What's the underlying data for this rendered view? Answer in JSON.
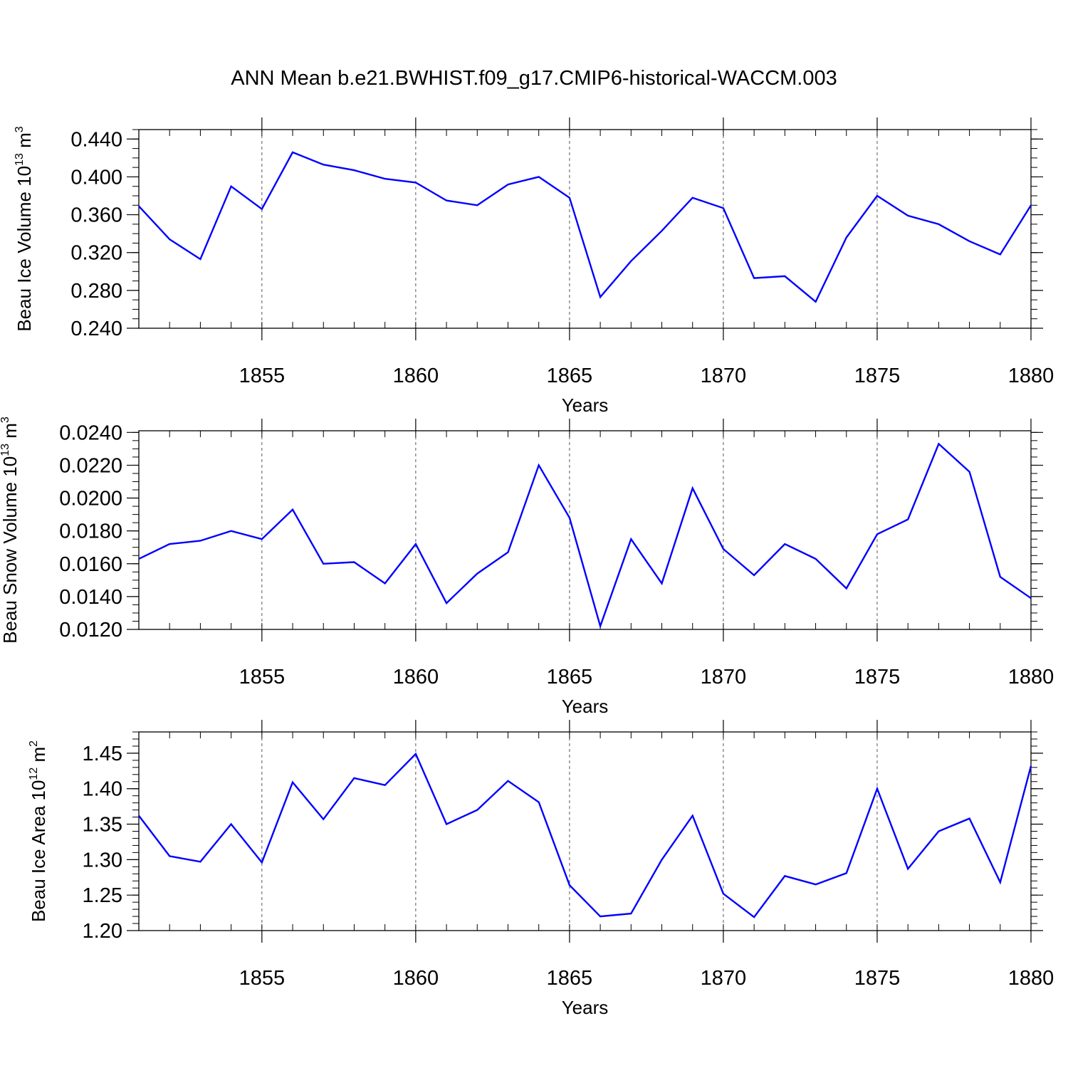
{
  "title": "ANN Mean b.e21.BWHIST.f09_g17.CMIP6-historical-WACCM.003",
  "line_color": "#0000ff",
  "chart_data": [
    {
      "type": "line",
      "xlabel": "Years",
      "ylabel": "Beau Ice Volume 10",
      "ylabel_exp": "13",
      "ylabel_unit": " m",
      "ylabel_unit_exp": "3",
      "xlim": [
        1851,
        1880
      ],
      "ylim": [
        0.24,
        0.45
      ],
      "xticks": [
        1855,
        1860,
        1865,
        1870,
        1875,
        1880
      ],
      "yticks": [
        0.24,
        0.28,
        0.32,
        0.36,
        0.4,
        0.44
      ],
      "ytick_labels": [
        "0.240",
        "0.280",
        "0.320",
        "0.360",
        "0.400",
        "0.440"
      ],
      "yminor_step": 0.01,
      "grid": "dashed vertical at major x ticks",
      "x": [
        1851,
        1852,
        1853,
        1854,
        1855,
        1856,
        1857,
        1858,
        1859,
        1860,
        1861,
        1862,
        1863,
        1864,
        1865,
        1866,
        1867,
        1868,
        1869,
        1870,
        1871,
        1872,
        1873,
        1874,
        1875,
        1876,
        1877,
        1878,
        1879,
        1880
      ],
      "values": [
        0.369,
        0.334,
        0.313,
        0.39,
        0.366,
        0.426,
        0.413,
        0.407,
        0.398,
        0.394,
        0.375,
        0.37,
        0.392,
        0.4,
        0.378,
        0.273,
        0.311,
        0.343,
        0.378,
        0.367,
        0.293,
        0.295,
        0.268,
        0.336,
        0.38,
        0.359,
        0.35,
        0.332,
        0.318,
        0.37
      ]
    },
    {
      "type": "line",
      "xlabel": "Years",
      "ylabel": "Beau Snow Volume 10",
      "ylabel_exp": "13",
      "ylabel_unit": " m",
      "ylabel_unit_exp": "3",
      "xlim": [
        1851,
        1880
      ],
      "ylim": [
        0.012,
        0.0241
      ],
      "xticks": [
        1855,
        1860,
        1865,
        1870,
        1875,
        1880
      ],
      "yticks": [
        0.012,
        0.014,
        0.016,
        0.018,
        0.02,
        0.022,
        0.024
      ],
      "ytick_labels": [
        "0.0120",
        "0.0140",
        "0.0160",
        "0.0180",
        "0.0200",
        "0.0220",
        "0.0240"
      ],
      "yminor_step": 0.0005,
      "grid": "dashed vertical at major x ticks",
      "x": [
        1851,
        1852,
        1853,
        1854,
        1855,
        1856,
        1857,
        1858,
        1859,
        1860,
        1861,
        1862,
        1863,
        1864,
        1865,
        1866,
        1867,
        1868,
        1869,
        1870,
        1871,
        1872,
        1873,
        1874,
        1875,
        1876,
        1877,
        1878,
        1879,
        1880
      ],
      "values": [
        0.0163,
        0.0172,
        0.0174,
        0.018,
        0.0175,
        0.0193,
        0.016,
        0.0161,
        0.0148,
        0.0172,
        0.0136,
        0.0154,
        0.0167,
        0.022,
        0.0188,
        0.0122,
        0.0175,
        0.0148,
        0.0206,
        0.0169,
        0.0153,
        0.0172,
        0.0163,
        0.0145,
        0.0178,
        0.0187,
        0.0233,
        0.0216,
        0.0152,
        0.0139
      ]
    },
    {
      "type": "line",
      "xlabel": "Years",
      "ylabel": "Beau Ice Area 10",
      "ylabel_exp": "12",
      "ylabel_unit": " m",
      "ylabel_unit_exp": "2",
      "xlim": [
        1851,
        1880
      ],
      "ylim": [
        1.2,
        1.48
      ],
      "xticks": [
        1855,
        1860,
        1865,
        1870,
        1875,
        1880
      ],
      "yticks": [
        1.2,
        1.25,
        1.3,
        1.35,
        1.4,
        1.45
      ],
      "ytick_labels": [
        "1.20",
        "1.25",
        "1.30",
        "1.35",
        "1.40",
        "1.45"
      ],
      "yminor_step": 0.01,
      "grid": "dashed vertical at major x ticks",
      "x": [
        1851,
        1852,
        1853,
        1854,
        1855,
        1856,
        1857,
        1858,
        1859,
        1860,
        1861,
        1862,
        1863,
        1864,
        1865,
        1866,
        1867,
        1868,
        1869,
        1870,
        1871,
        1872,
        1873,
        1874,
        1875,
        1876,
        1877,
        1878,
        1879,
        1880
      ],
      "values": [
        1.362,
        1.305,
        1.297,
        1.35,
        1.296,
        1.409,
        1.357,
        1.415,
        1.405,
        1.449,
        1.35,
        1.37,
        1.411,
        1.381,
        1.264,
        1.22,
        1.224,
        1.3,
        1.362,
        1.252,
        1.219,
        1.277,
        1.265,
        1.281,
        1.4,
        1.287,
        1.34,
        1.358,
        1.268,
        1.432
      ]
    }
  ]
}
